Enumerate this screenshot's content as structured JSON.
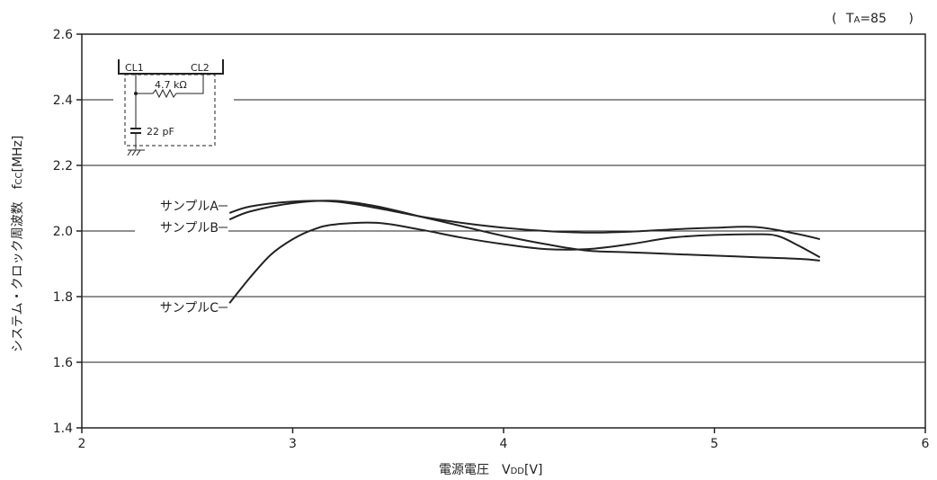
{
  "chart_data": {
    "type": "line",
    "title": "",
    "condition": "( TA=85℃ )",
    "condition_parts": {
      "open": "(",
      "t": "T",
      "sub": "A",
      "rest": "=85",
      "close": ")"
    },
    "xlabel": "電源電圧　V",
    "xlabel_sub": "DD",
    "xlabel_unit": "[V]",
    "ylabel": "システム・クロック周波数　f",
    "ylabel_sub": "CC",
    "ylabel_unit": "[MHz]",
    "xlim": [
      2,
      6
    ],
    "ylim": [
      1.4,
      2.6
    ],
    "xticks": [
      "2",
      "3",
      "4",
      "5",
      "6"
    ],
    "yticks": [
      "1.4",
      "1.6",
      "1.8",
      "2.0",
      "2.2",
      "2.4",
      "2.6"
    ],
    "grid": "horizontal",
    "series": [
      {
        "name": "サンプルA",
        "x": [
          2.7,
          2.8,
          3.0,
          3.2,
          3.4,
          3.6,
          3.8,
          4.0,
          4.2,
          4.4,
          4.6,
          4.8,
          5.0,
          5.2,
          5.4,
          5.5
        ],
        "y": [
          2.055,
          2.075,
          2.09,
          2.09,
          2.07,
          2.045,
          2.025,
          2.01,
          2.0,
          1.995,
          1.998,
          2.005,
          2.01,
          2.012,
          1.99,
          1.975
        ]
      },
      {
        "name": "サンプルB",
        "x": [
          2.7,
          2.8,
          3.0,
          3.2,
          3.4,
          3.6,
          3.8,
          4.0,
          4.2,
          4.4,
          4.6,
          4.8,
          5.0,
          5.2,
          5.4,
          5.5
        ],
        "y": [
          2.035,
          2.06,
          2.085,
          2.092,
          2.075,
          2.045,
          2.015,
          1.985,
          1.96,
          1.94,
          1.935,
          1.93,
          1.925,
          1.92,
          1.915,
          1.91
        ]
      },
      {
        "name": "サンプルC",
        "x": [
          2.7,
          2.8,
          2.9,
          3.0,
          3.1,
          3.2,
          3.4,
          3.6,
          3.8,
          4.0,
          4.2,
          4.4,
          4.6,
          4.8,
          5.0,
          5.2,
          5.3,
          5.4,
          5.5
        ],
        "y": [
          1.78,
          1.86,
          1.93,
          1.975,
          2.005,
          2.02,
          2.025,
          2.005,
          1.98,
          1.96,
          1.945,
          1.945,
          1.96,
          1.98,
          1.988,
          1.99,
          1.985,
          1.955,
          1.92
        ]
      }
    ],
    "inset": {
      "pin_left": "CL1",
      "pin_right": "CL2",
      "resistor": "4.7 kΩ",
      "capacitor": "22 pF"
    }
  }
}
